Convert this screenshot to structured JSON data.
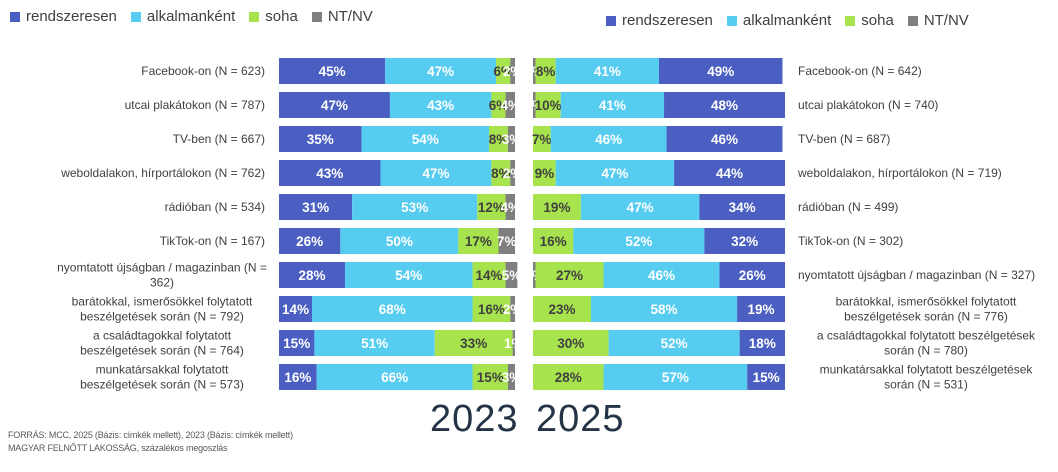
{
  "colors": {
    "rendszeresen": "#4a5fc1",
    "alkalmankent": "#55ccf0",
    "soha": "#a6e34d",
    "ntnv": "#7f7f7f"
  },
  "legend": {
    "items": [
      {
        "label": "rendszeresen",
        "color": "#4a5fc1"
      },
      {
        "label": "alkalmanként",
        "color": "#55ccf0"
      },
      {
        "label": "soha",
        "color": "#a6e34d"
      },
      {
        "label": "NT/NV",
        "color": "#7f7f7f"
      }
    ]
  },
  "years": {
    "left": "2023",
    "right": "2025"
  },
  "source": {
    "line1": "FORRÁS: MCC, 2025 (Bázis: címkék mellett), 2023 (Bázis: címkék mellett)",
    "line2": "MAGYAR FELNŐTT LAKOSSÁG, százalékos megoszlás"
  },
  "chart_data": [
    {
      "type": "bar",
      "orientation": "horizontal-stacked",
      "title": "2023",
      "xlim": [
        0,
        100
      ],
      "series_order": [
        "rendszeresen",
        "alkalmanként",
        "soha",
        "NT/NV"
      ],
      "categories": [
        "Facebook-on (N = 623)",
        "utcai plakátokon (N = 787)",
        "TV-ben (N = 667)",
        "weboldalakon, hírportálokon (N = 762)",
        "rádióban (N = 534)",
        "TikTok-on (N = 167)",
        "nyomtatott újságban / magazinban (N = 362)",
        "barátokkal, ismerősökkel folytatott beszélgetések során (N = 792)",
        "a családtagokkal folytatott beszélgetések során (N = 764)",
        "munkatársakkal folytatott beszélgetések során (N = 573)"
      ],
      "series": [
        {
          "name": "rendszeresen",
          "values": [
            45,
            47,
            35,
            43,
            31,
            26,
            28,
            14,
            15,
            16
          ]
        },
        {
          "name": "alkalmanként",
          "values": [
            47,
            43,
            54,
            47,
            53,
            50,
            54,
            68,
            51,
            66
          ]
        },
        {
          "name": "soha",
          "values": [
            6,
            6,
            8,
            8,
            12,
            17,
            14,
            16,
            33,
            15
          ]
        },
        {
          "name": "NT/NV",
          "values": [
            2,
            4,
            3,
            2,
            4,
            7,
            5,
            2,
            1,
            3
          ]
        }
      ]
    },
    {
      "type": "bar",
      "orientation": "horizontal-stacked",
      "title": "2025",
      "xlim": [
        0,
        100
      ],
      "series_order": [
        "NT/NV",
        "soha",
        "alkalmanként",
        "rendszeresen"
      ],
      "categories": [
        "Facebook-on (N = 642)",
        "utcai plakátokon (N = 740)",
        "TV-ben (N = 687)",
        "weboldalakon, hírportálokon (N = 719)",
        "rádióban (N = 499)",
        "TikTok-on (N = 302)",
        "nyomtatott újságban / magazinban (N = 327)",
        "barátokkal, ismerősökkel folytatott beszélgetések során (N = 776)",
        "a családtagokkal folytatott beszélgetések során (N = 780)",
        "munkatársakkal folytatott beszélgetések során (N = 531)"
      ],
      "series": [
        {
          "name": "rendszeresen",
          "values": [
            49,
            48,
            46,
            44,
            34,
            32,
            26,
            19,
            18,
            15
          ]
        },
        {
          "name": "alkalmanként",
          "values": [
            41,
            41,
            46,
            47,
            47,
            52,
            46,
            58,
            52,
            57
          ]
        },
        {
          "name": "soha",
          "values": [
            8,
            10,
            7,
            9,
            19,
            16,
            27,
            23,
            30,
            28
          ]
        },
        {
          "name": "NT/NV",
          "values": [
            1,
            1,
            0,
            0,
            0,
            0,
            1,
            0,
            0,
            0
          ]
        }
      ]
    }
  ]
}
